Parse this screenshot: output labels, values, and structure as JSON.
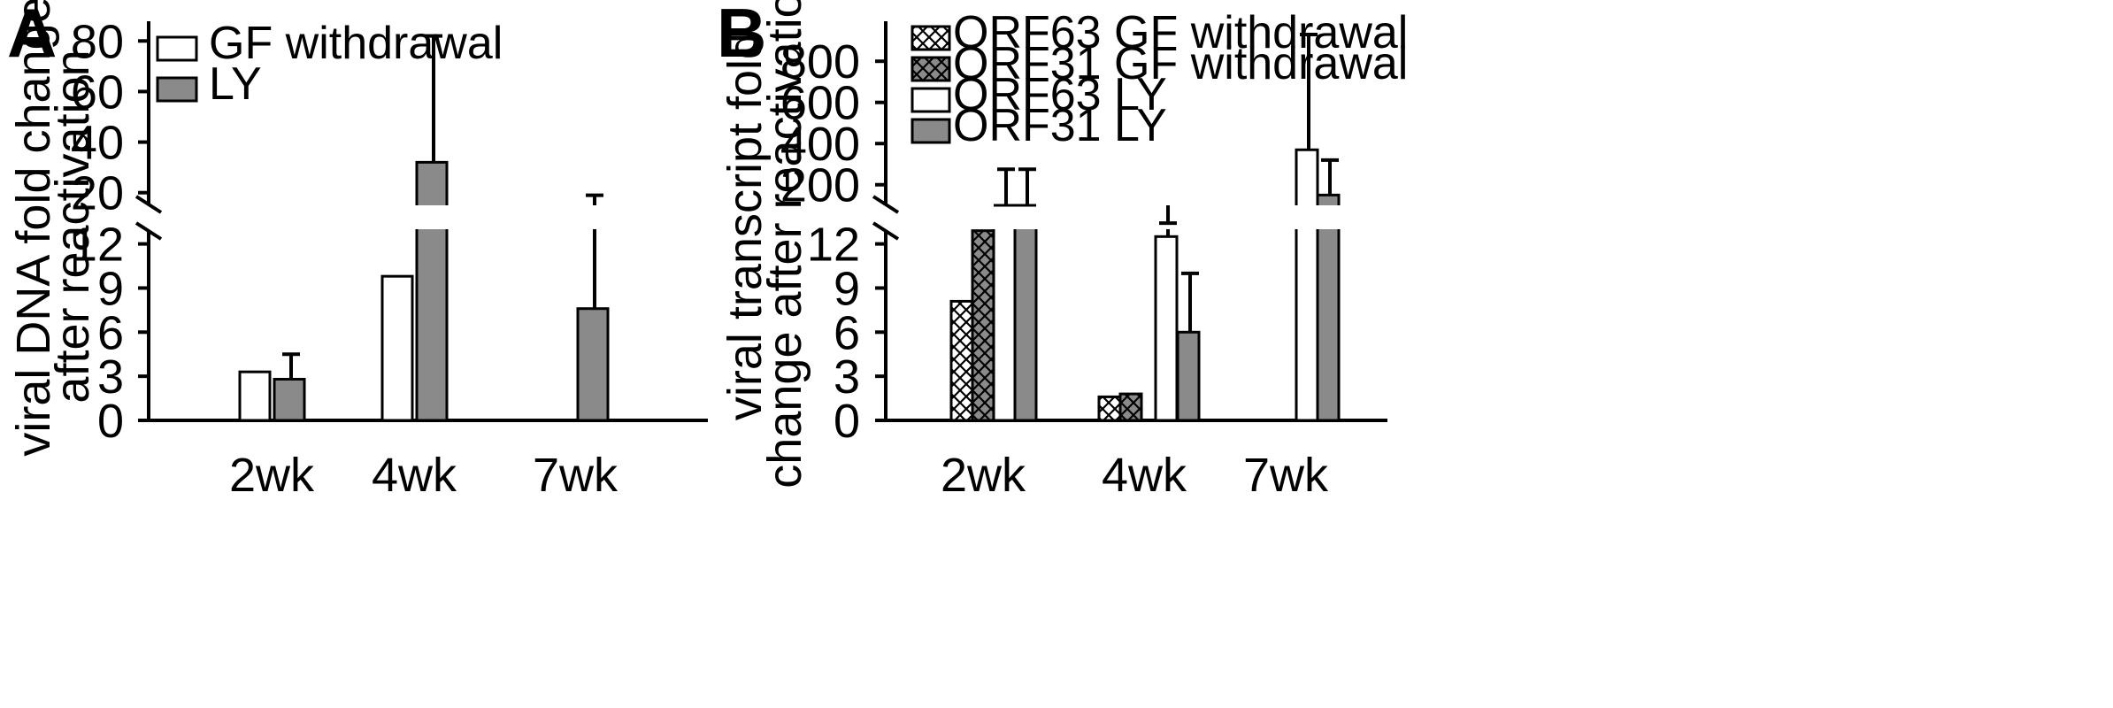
{
  "colors": {
    "white": "#ffffff",
    "gray": "#8a8a8a",
    "stroke": "#000000"
  },
  "chart_data": [
    {
      "panel": "A",
      "type": "bar",
      "broken_y_axis": true,
      "ylabel_lines": [
        "viral DNA fold change",
        "after reactivation"
      ],
      "categories": [
        "2wk",
        "4wk",
        "7wk"
      ],
      "lower_ticks": [
        "0",
        "3",
        "6",
        "9",
        "12"
      ],
      "upper_ticks": [
        "20",
        "40",
        "60",
        "80"
      ],
      "lower_ylim": [
        0,
        13
      ],
      "upper_ylim": [
        15,
        85
      ],
      "series": [
        {
          "name": "GF withdrawal",
          "fill": "white",
          "values": [
            3.3,
            9.8,
            null
          ],
          "errors": [
            null,
            null,
            null
          ]
        },
        {
          "name": "LY",
          "fill": "gray",
          "values": [
            2.8,
            32,
            7.6
          ],
          "errors": [
            4.5,
            82,
            19
          ]
        }
      ],
      "legend_position": "top-left"
    },
    {
      "panel": "B",
      "type": "bar",
      "broken_y_axis": true,
      "ylabel_lines": [
        "viral transcript fold",
        "change after reactivation"
      ],
      "categories": [
        "2wk",
        "4wk",
        "7wk"
      ],
      "lower_ticks": [
        "0",
        "3",
        "6",
        "9",
        "12"
      ],
      "upper_ticks": [
        "200",
        "400",
        "600",
        "800"
      ],
      "lower_ylim": [
        0,
        13
      ],
      "upper_ylim": [
        100,
        960
      ],
      "series": [
        {
          "name": "ORF63 GF withdrawal",
          "fill": "hatch-white",
          "values": [
            8.1,
            1.6,
            null
          ],
          "errors": [
            null,
            null,
            null
          ]
        },
        {
          "name": "ORF31 GF withdrawal",
          "fill": "hatch-gray",
          "values": [
            12.9,
            1.8,
            null
          ],
          "errors": [
            null,
            null,
            null
          ]
        },
        {
          "name": "ORF63 LY",
          "fill": "white",
          "values": [
            100,
            12.5,
            370
          ],
          "errors": [
            275,
            13.5,
            930
          ]
        },
        {
          "name": "ORF31 LY",
          "fill": "gray",
          "values": [
            100,
            6.0,
            150
          ],
          "errors": [
            275,
            10.0,
            320
          ]
        }
      ],
      "legend_position": "top-left"
    }
  ]
}
